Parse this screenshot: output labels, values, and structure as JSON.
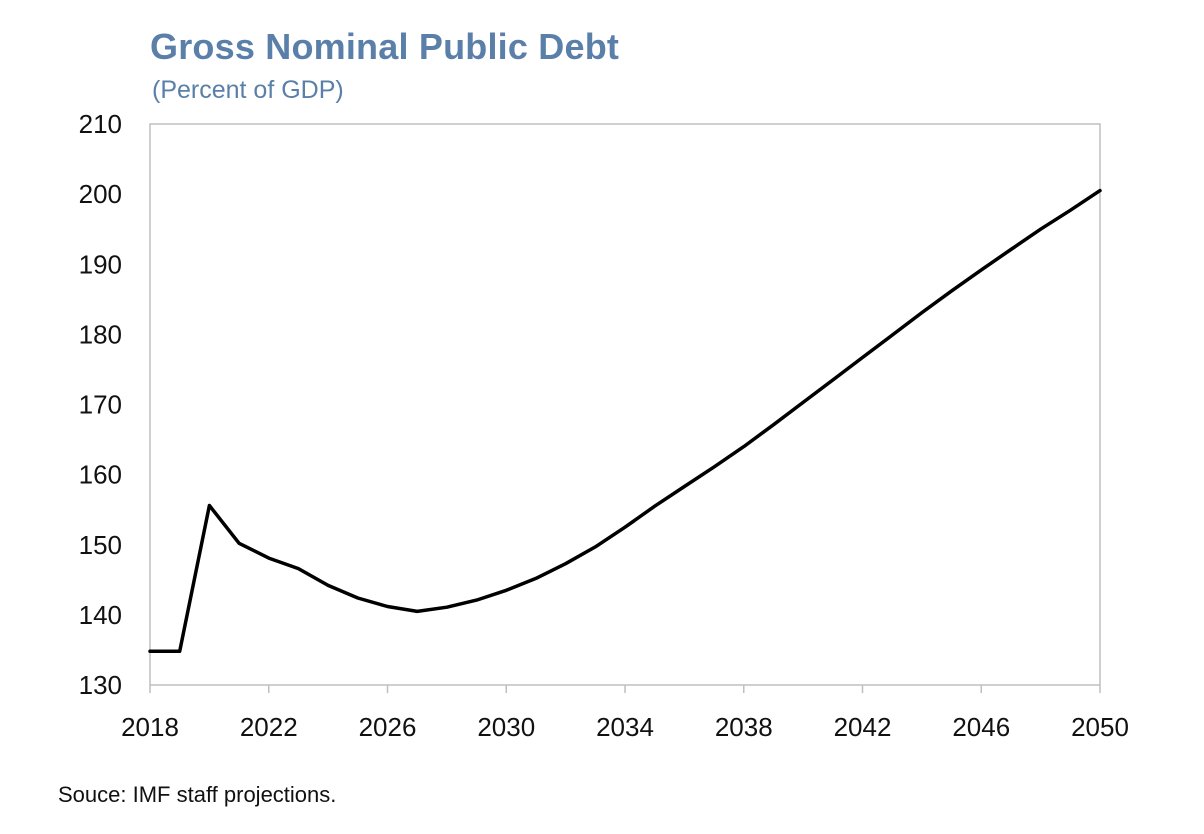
{
  "chart_data": {
    "type": "line",
    "title": "Gross Nominal Public Debt",
    "subtitle": "(Percent of GDP)",
    "xlabel": "",
    "ylabel": "",
    "xlim": [
      2018,
      2050
    ],
    "ylim": [
      130,
      210
    ],
    "x_ticks": [
      2018,
      2022,
      2026,
      2030,
      2034,
      2038,
      2042,
      2046,
      2050
    ],
    "y_ticks": [
      130,
      140,
      150,
      160,
      170,
      180,
      190,
      200,
      210
    ],
    "grid": false,
    "legend": "none",
    "line_color": "#000000",
    "series": [
      {
        "x": [
          2018,
          2019,
          2020,
          2021,
          2022,
          2023,
          2024,
          2025,
          2026,
          2027,
          2028,
          2029,
          2030,
          2031,
          2032,
          2033,
          2034,
          2035,
          2036,
          2037,
          2038,
          2039,
          2040,
          2041,
          2042,
          2043,
          2044,
          2045,
          2046,
          2047,
          2048,
          2049,
          2050
        ],
        "values": [
          134.8,
          134.8,
          155.6,
          150.2,
          148.1,
          146.6,
          144.2,
          142.4,
          141.2,
          140.5,
          141.1,
          142.1,
          143.5,
          145.2,
          147.3,
          149.7,
          152.5,
          155.5,
          158.3,
          161.1,
          164.0,
          167.1,
          170.3,
          173.5,
          176.7,
          179.9,
          183.1,
          186.2,
          189.2,
          192.1,
          195.0,
          197.7,
          200.5
        ]
      }
    ],
    "source": "Souce: IMF staff projections."
  }
}
